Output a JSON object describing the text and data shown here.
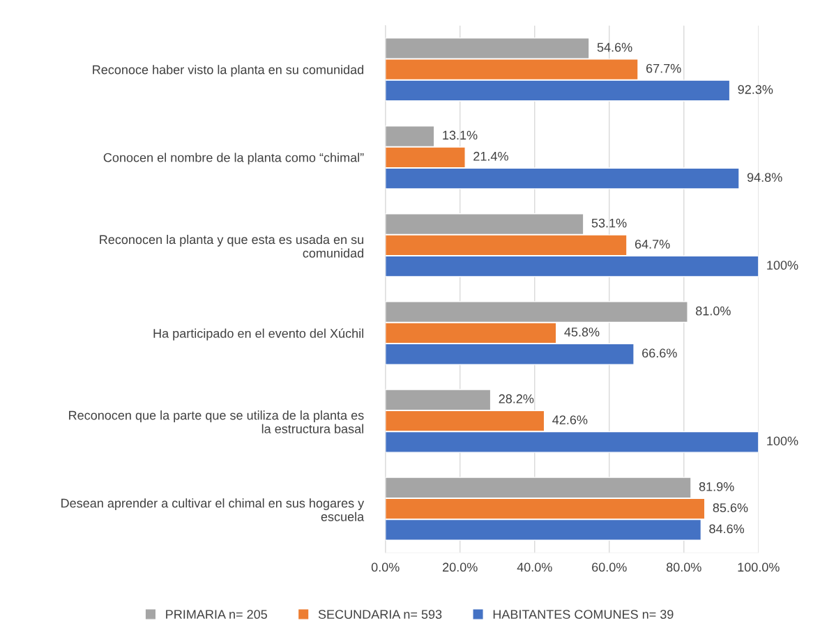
{
  "chart_data": {
    "type": "bar",
    "orientation": "horizontal",
    "categories": [
      "Reconoce haber visto la planta en su comunidad",
      "Conocen el nombre de la planta como “chimal”",
      "Reconocen la planta y que esta es usada en su\ncomunidad",
      "Ha participado en el evento del Xúchil",
      "Reconocen que la parte que se utiliza de la planta es\nla estructura basal",
      "Desean aprender a cultivar el chimal en sus hogares y\nescuela"
    ],
    "series": [
      {
        "name": "PRIMARIA n= 205",
        "color": "#a5a5a5",
        "values": [
          54.6,
          13.1,
          53.1,
          81.0,
          28.2,
          81.9
        ],
        "value_labels": [
          "54.6%",
          "13.1%",
          "53.1%",
          "81.0%",
          "28.2%",
          "81.9%"
        ]
      },
      {
        "name": "SECUNDARIA n= 593",
        "color": "#ed7d31",
        "values": [
          67.7,
          21.4,
          64.7,
          45.8,
          42.6,
          85.6
        ],
        "value_labels": [
          "67.7%",
          "21.4%",
          "64.7%",
          "45.8%",
          "42.6%",
          "85.6%"
        ]
      },
      {
        "name": "HABITANTES COMUNES n= 39",
        "color": "#4472c4",
        "values": [
          92.3,
          94.8,
          100,
          66.6,
          100,
          84.6
        ],
        "value_labels": [
          "92.3%",
          "94.8%",
          "100%",
          "66.6%",
          "100%",
          "84.6%"
        ]
      }
    ],
    "xlim": [
      0,
      100
    ],
    "xticks": [
      {
        "value": 0,
        "label": "0.0%"
      },
      {
        "value": 20,
        "label": "20.0%"
      },
      {
        "value": 40,
        "label": "40.0%"
      },
      {
        "value": 60,
        "label": "60.0%"
      },
      {
        "value": 80,
        "label": "80.0%"
      },
      {
        "value": 100,
        "label": "100.0%"
      }
    ],
    "grid": "x",
    "legend": "bottom"
  }
}
